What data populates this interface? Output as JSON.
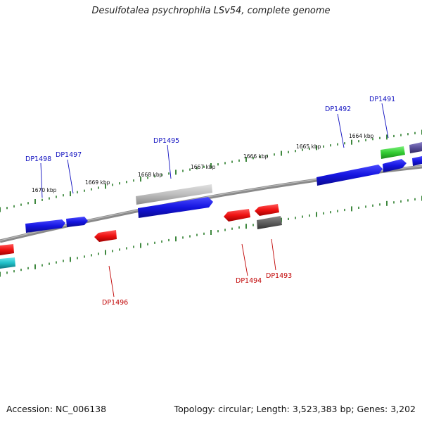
{
  "title": "Desulfotalea psychrophila LSv54, complete genome",
  "footer": {
    "accession": "Accession: NC_006138",
    "stats": "Topology: circular; Length: 3,523,383 bp; Genes: 3,202"
  },
  "colors": {
    "background": "#ffffff",
    "backbone": "#8a8a8a",
    "tick": "#0e6b0e",
    "forward_label": "#1010c0",
    "reverse_label": "#c00000",
    "blue_gene": "#1414e0",
    "red_gene": "#ee1111",
    "grey_gene": "#bdbdbd",
    "darkgrey_gene": "#5f5f5f",
    "green_gene": "#33cc33",
    "cyan_gene": "#20c0c8",
    "purple_gene": "#5a4f9a"
  },
  "scale_labels": [
    "1670 kbp",
    "1669 kbp",
    "1668 kbp",
    "1667 kbp",
    "1666 kbp",
    "1665 kbp",
    "1664 kbp"
  ],
  "gene_labels": [
    {
      "name": "DP1498",
      "strand": "forward"
    },
    {
      "name": "DP1497",
      "strand": "forward"
    },
    {
      "name": "DP1495",
      "strand": "forward"
    },
    {
      "name": "DP1492",
      "strand": "forward"
    },
    {
      "name": "DP1491",
      "strand": "forward"
    },
    {
      "name": "DP1496",
      "strand": "reverse"
    },
    {
      "name": "DP1494",
      "strand": "reverse"
    },
    {
      "name": "DP1493",
      "strand": "reverse"
    }
  ]
}
